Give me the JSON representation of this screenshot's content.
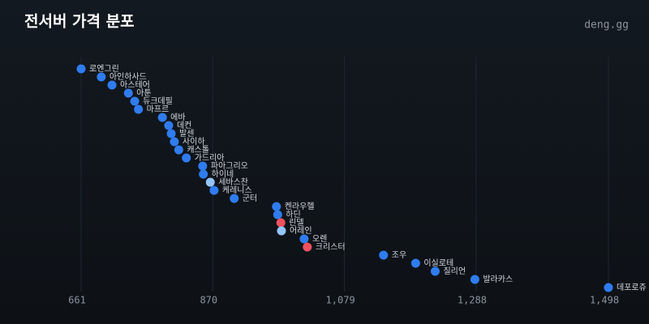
{
  "chart_data": {
    "type": "dot",
    "title": "전서버 가격 분포",
    "brand": "deng.gg",
    "categories": [
      "로엔그린",
      "아인하사드",
      "아스테어",
      "아툰",
      "듀크데필",
      "마프르",
      "에바",
      "데컨",
      "발센",
      "사이하",
      "캐스톨",
      "가드리아",
      "파아그리오",
      "하이네",
      "세바스찬",
      "케레니스",
      "군터",
      "켄라우헬",
      "하딘",
      "린델",
      "어레인",
      "오렌",
      "크리스터",
      "조우",
      "이실로테",
      "질리언",
      "발라카스",
      "데포로쥬"
    ],
    "values": [
      661,
      693,
      710,
      736,
      746,
      752,
      790,
      800,
      804,
      809,
      816,
      828,
      854,
      855,
      866,
      872,
      904,
      971,
      973,
      978,
      979,
      1015,
      1020,
      1141,
      1192,
      1223,
      1286,
      1498
    ],
    "colors": [
      "#2f7cf0",
      "#2f7cf0",
      "#2f7cf0",
      "#2f7cf0",
      "#2f7cf0",
      "#2f7cf0",
      "#2f7cf0",
      "#2f7cf0",
      "#2f7cf0",
      "#2f7cf0",
      "#2f7cf0",
      "#2f7cf0",
      "#2f7cf0",
      "#2f7cf0",
      "#93c5fd",
      "#2f7cf0",
      "#2f7cf0",
      "#2f7cf0",
      "#2f7cf0",
      "#f0505f",
      "#93c5fd",
      "#2f7cf0",
      "#f0505f",
      "#2f7cf0",
      "#2f7cf0",
      "#2f7cf0",
      "#2f7cf0",
      "#2f7cf0"
    ],
    "xlim": [
      661,
      1498
    ],
    "xticks": [
      661,
      870,
      {
        "value": 1079,
        "label": "1,079"
      },
      {
        "value": 1288,
        "label": "1,288"
      },
      {
        "value": 1498,
        "label": "1,498"
      }
    ],
    "grid": true
  }
}
